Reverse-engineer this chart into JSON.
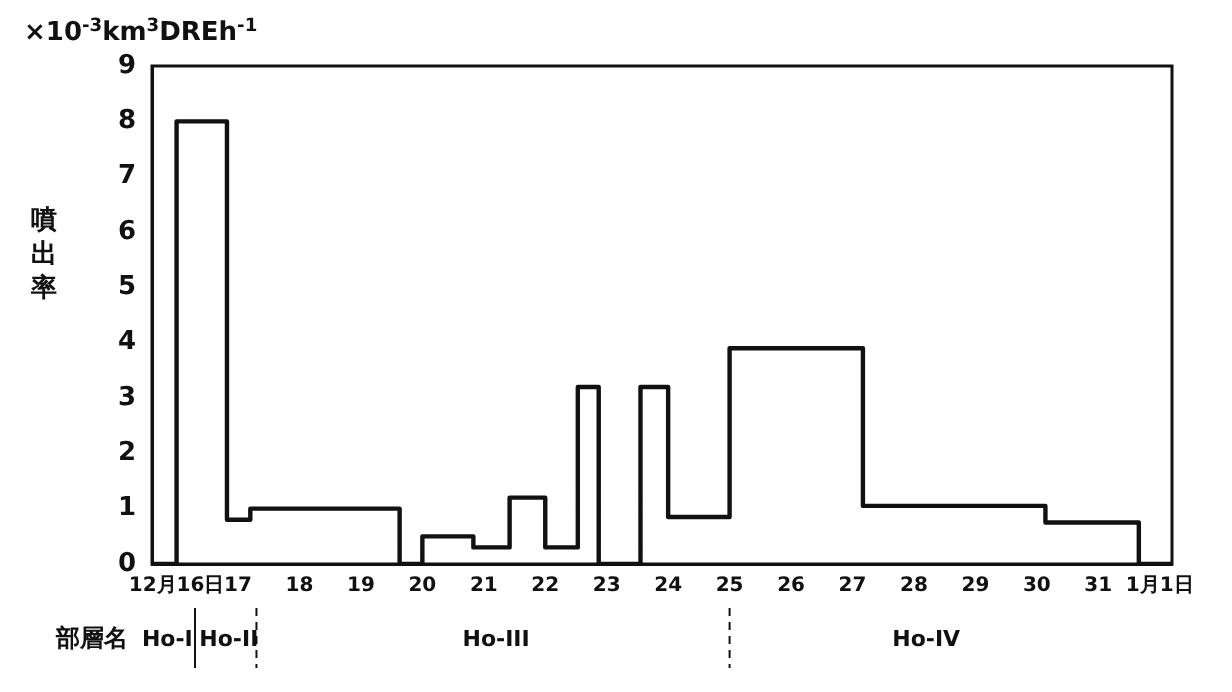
{
  "chart_data": {
    "type": "step",
    "ylabel": "噴出率",
    "x": [
      15.6,
      16,
      16.82,
      17.2,
      19.63,
      20,
      20.83,
      21.42,
      22,
      22.53,
      22.87,
      23.55,
      24,
      25,
      27.17,
      30.14,
      31.66,
      32.2
    ],
    "series": [
      {
        "color": "#111111",
        "values": [
          0,
          8,
          0.8,
          1.0,
          0,
          0.5,
          0.3,
          1.2,
          0.3,
          3.2,
          0,
          3.2,
          0.85,
          3.9,
          1.05,
          0.75,
          0,
          0
        ]
      }
    ],
    "xlim": [
      15.6,
      32.2
    ],
    "xticks": [
      {
        "value": 16,
        "label": "12月16日"
      },
      17,
      18,
      19,
      20,
      21,
      22,
      23,
      24,
      25,
      26,
      27,
      28,
      29,
      30,
      31,
      {
        "value": 32,
        "label": "1月1日"
      }
    ],
    "ylim": [
      0,
      9
    ],
    "yticks": [
      0,
      1,
      2,
      3,
      4,
      5,
      6,
      7,
      8,
      9
    ],
    "grid": false,
    "legend": false,
    "marker": "none",
    "line_style": "solid",
    "annotations": [
      "×10$^{-3}$km$^{3}$DREh$^{-1}$",
      "部層名",
      "Ho-I",
      "Ho-II",
      "Ho-III",
      "Ho-IV"
    ]
  }
}
